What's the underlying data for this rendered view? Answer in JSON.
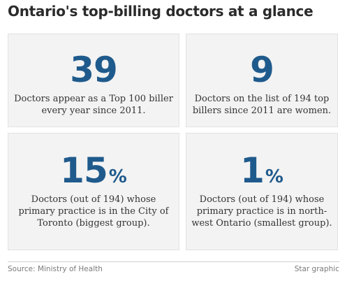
{
  "title": "Ontario's top-billing doctors at a glance",
  "stats": [
    {
      "number": "39",
      "suffix": "",
      "description": "Doctors appear as a Top 100 biller every year since 2011."
    },
    {
      "number": "9",
      "suffix": "",
      "description": "Doctors on the list of 194 top billers since 2011 are women."
    },
    {
      "number": "15",
      "suffix": "%",
      "description": "Doctors (out of 194) whose primary practice is in the City of Toronto (biggest group)."
    },
    {
      "number": "1",
      "suffix": "%",
      "description": "Doctors (out of 194) whose primary practice is in north-west Ontario (smallest group)."
    }
  ],
  "footer": {
    "source": "Source: Ministry of Health",
    "credit": "Star graphic"
  },
  "colors": {
    "accent": "#1f5a8c",
    "card_background": "#f3f3f3",
    "text": "#333333"
  }
}
